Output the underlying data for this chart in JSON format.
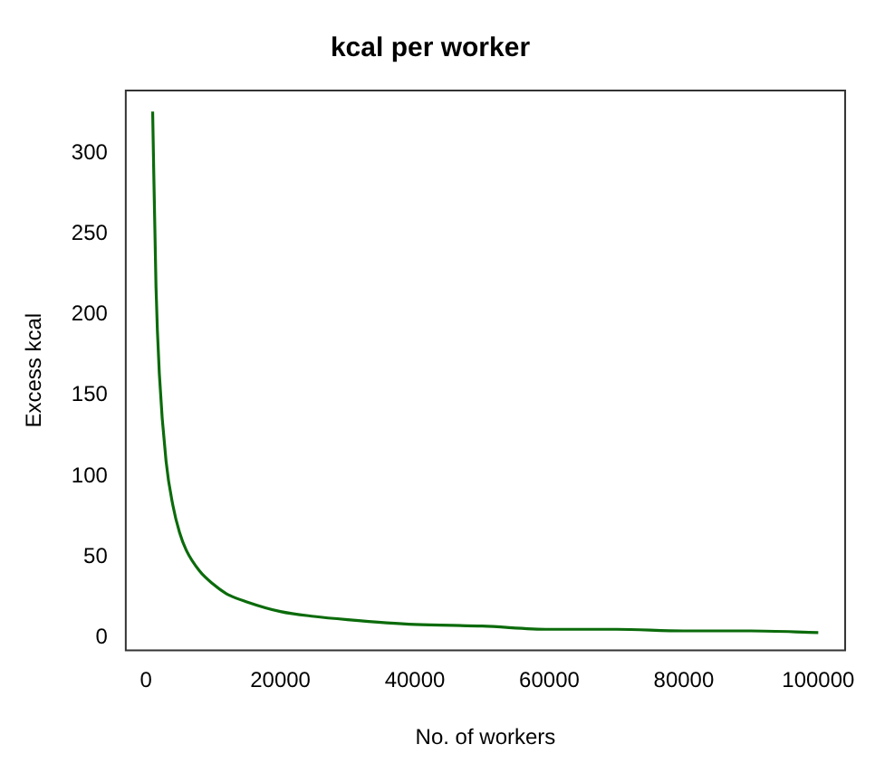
{
  "chart_data": {
    "type": "line",
    "title": "kcal per worker",
    "xlabel": "No. of workers",
    "ylabel": "Excess kcal",
    "series": [
      {
        "color": "#0b6b0b",
        "x": [
          1000,
          1500,
          2000,
          3000,
          4000,
          5000,
          6000,
          8000,
          10000,
          12000,
          15000,
          20000,
          25000,
          30000,
          40000,
          50000,
          60000,
          70000,
          80000,
          90000,
          100000
        ],
        "values": [
          326,
          217,
          163,
          109,
          82,
          65,
          54,
          41,
          33,
          27,
          22,
          16,
          13,
          11,
          8,
          7,
          5,
          5,
          4,
          4,
          3
        ]
      }
    ],
    "xlim": [
      -3000,
      104000
    ],
    "xticks": [
      0,
      20000,
      40000,
      60000,
      80000,
      100000
    ],
    "ylim": [
      -8,
      339
    ],
    "yticks": [
      0,
      50,
      100,
      150,
      200,
      250,
      300
    ],
    "grid": false,
    "legend": false,
    "marker": "none",
    "line_style": "solid"
  }
}
